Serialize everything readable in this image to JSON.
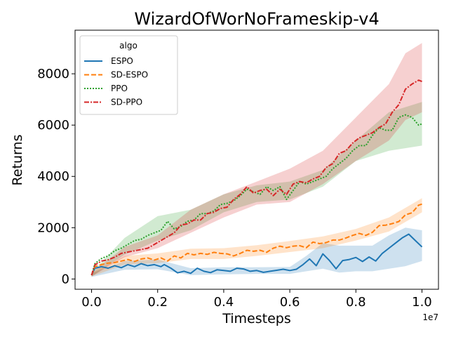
{
  "chart_data": {
    "type": "line",
    "title": "WizardOfWorNoFrameskip-v4",
    "xlabel": "Timesteps",
    "ylabel": "Returns",
    "x_scale_label": "1e7",
    "xlim": [
      -0.05,
      1.05
    ],
    "ylim": [
      -400,
      9700
    ],
    "xticks": [
      0.0,
      0.2,
      0.4,
      0.6,
      0.8,
      1.0
    ],
    "xtick_labels": [
      "0.0",
      "0.2",
      "0.4",
      "0.6",
      "0.8",
      "1.0"
    ],
    "yticks": [
      0,
      2000,
      4000,
      6000,
      8000
    ],
    "ytick_labels": [
      "0",
      "2000",
      "4000",
      "6000",
      "8000"
    ],
    "grid": false,
    "legend": {
      "title": "algo",
      "placement": "top-left",
      "entries": [
        "ESPO",
        "SD-ESPO",
        "PPO",
        "SD-PPO"
      ]
    },
    "series": [
      {
        "name": "ESPO",
        "color": "#1f77b4",
        "dash": "solid",
        "points": [
          [
            0.0,
            150
          ],
          [
            0.01,
            420
          ],
          [
            0.03,
            480
          ],
          [
            0.05,
            420
          ],
          [
            0.07,
            520
          ],
          [
            0.09,
            440
          ],
          [
            0.11,
            560
          ],
          [
            0.13,
            480
          ],
          [
            0.15,
            600
          ],
          [
            0.17,
            520
          ],
          [
            0.19,
            560
          ],
          [
            0.21,
            480
          ],
          [
            0.22,
            560
          ],
          [
            0.24,
            420
          ],
          [
            0.26,
            240
          ],
          [
            0.28,
            300
          ],
          [
            0.3,
            220
          ],
          [
            0.32,
            420
          ],
          [
            0.34,
            300
          ],
          [
            0.36,
            250
          ],
          [
            0.38,
            360
          ],
          [
            0.4,
            330
          ],
          [
            0.42,
            300
          ],
          [
            0.44,
            420
          ],
          [
            0.46,
            390
          ],
          [
            0.48,
            300
          ],
          [
            0.5,
            330
          ],
          [
            0.52,
            260
          ],
          [
            0.54,
            300
          ],
          [
            0.56,
            340
          ],
          [
            0.58,
            380
          ],
          [
            0.6,
            330
          ],
          [
            0.62,
            380
          ],
          [
            0.64,
            560
          ],
          [
            0.66,
            780
          ],
          [
            0.68,
            520
          ],
          [
            0.7,
            980
          ],
          [
            0.72,
            720
          ],
          [
            0.74,
            400
          ],
          [
            0.76,
            720
          ],
          [
            0.78,
            760
          ],
          [
            0.8,
            840
          ],
          [
            0.82,
            680
          ],
          [
            0.84,
            860
          ],
          [
            0.86,
            700
          ],
          [
            0.88,
            1000
          ],
          [
            0.9,
            1200
          ],
          [
            0.92,
            1400
          ],
          [
            0.94,
            1600
          ],
          [
            0.96,
            1750
          ],
          [
            0.98,
            1500
          ],
          [
            1.0,
            1250
          ]
        ],
        "band": [
          [
            0.0,
            80,
            220
          ],
          [
            0.1,
            360,
            700
          ],
          [
            0.2,
            380,
            760
          ],
          [
            0.3,
            150,
            420
          ],
          [
            0.4,
            180,
            460
          ],
          [
            0.5,
            200,
            460
          ],
          [
            0.6,
            200,
            470
          ],
          [
            0.65,
            300,
            900
          ],
          [
            0.7,
            400,
            1400
          ],
          [
            0.75,
            250,
            1300
          ],
          [
            0.8,
            300,
            1300
          ],
          [
            0.85,
            300,
            1300
          ],
          [
            0.9,
            400,
            1700
          ],
          [
            0.95,
            500,
            2000
          ],
          [
            1.0,
            700,
            1900
          ]
        ]
      },
      {
        "name": "SD-ESPO",
        "color": "#ff7f0e",
        "dash": "dashed",
        "points": [
          [
            0.0,
            150
          ],
          [
            0.01,
            480
          ],
          [
            0.03,
            560
          ],
          [
            0.05,
            620
          ],
          [
            0.07,
            640
          ],
          [
            0.09,
            700
          ],
          [
            0.11,
            760
          ],
          [
            0.13,
            680
          ],
          [
            0.15,
            780
          ],
          [
            0.17,
            820
          ],
          [
            0.19,
            740
          ],
          [
            0.21,
            820
          ],
          [
            0.23,
            700
          ],
          [
            0.25,
            900
          ],
          [
            0.27,
            820
          ],
          [
            0.29,
            1000
          ],
          [
            0.31,
            940
          ],
          [
            0.33,
            1000
          ],
          [
            0.35,
            960
          ],
          [
            0.37,
            1040
          ],
          [
            0.39,
            1000
          ],
          [
            0.41,
            980
          ],
          [
            0.43,
            900
          ],
          [
            0.45,
            1000
          ],
          [
            0.47,
            1120
          ],
          [
            0.49,
            1080
          ],
          [
            0.51,
            1120
          ],
          [
            0.53,
            1040
          ],
          [
            0.55,
            1200
          ],
          [
            0.57,
            1280
          ],
          [
            0.59,
            1220
          ],
          [
            0.61,
            1280
          ],
          [
            0.63,
            1300
          ],
          [
            0.65,
            1220
          ],
          [
            0.67,
            1440
          ],
          [
            0.69,
            1380
          ],
          [
            0.71,
            1420
          ],
          [
            0.73,
            1520
          ],
          [
            0.75,
            1520
          ],
          [
            0.77,
            1600
          ],
          [
            0.79,
            1700
          ],
          [
            0.81,
            1780
          ],
          [
            0.83,
            1700
          ],
          [
            0.85,
            1820
          ],
          [
            0.87,
            2080
          ],
          [
            0.89,
            2100
          ],
          [
            0.91,
            2160
          ],
          [
            0.93,
            2240
          ],
          [
            0.95,
            2500
          ],
          [
            0.97,
            2580
          ],
          [
            0.99,
            2880
          ],
          [
            1.0,
            2920
          ]
        ],
        "band": [
          [
            0.0,
            100,
            220
          ],
          [
            0.1,
            560,
            900
          ],
          [
            0.2,
            620,
            1000
          ],
          [
            0.3,
            780,
            1180
          ],
          [
            0.4,
            780,
            1200
          ],
          [
            0.5,
            900,
            1320
          ],
          [
            0.6,
            1050,
            1480
          ],
          [
            0.7,
            1200,
            1660
          ],
          [
            0.8,
            1500,
            1950
          ],
          [
            0.9,
            1850,
            2400
          ],
          [
            1.0,
            2600,
            3150
          ]
        ]
      },
      {
        "name": "PPO",
        "color": "#2ca02c",
        "dash": "dotted",
        "points": [
          [
            0.0,
            150
          ],
          [
            0.01,
            600
          ],
          [
            0.03,
            800
          ],
          [
            0.05,
            900
          ],
          [
            0.07,
            1100
          ],
          [
            0.09,
            1200
          ],
          [
            0.11,
            1350
          ],
          [
            0.13,
            1500
          ],
          [
            0.15,
            1550
          ],
          [
            0.17,
            1700
          ],
          [
            0.19,
            1800
          ],
          [
            0.21,
            1900
          ],
          [
            0.23,
            2250
          ],
          [
            0.25,
            1950
          ],
          [
            0.27,
            2050
          ],
          [
            0.29,
            2250
          ],
          [
            0.31,
            2300
          ],
          [
            0.33,
            2550
          ],
          [
            0.35,
            2550
          ],
          [
            0.37,
            2650
          ],
          [
            0.39,
            2900
          ],
          [
            0.41,
            2950
          ],
          [
            0.43,
            3050
          ],
          [
            0.45,
            3250
          ],
          [
            0.47,
            3500
          ],
          [
            0.49,
            3400
          ],
          [
            0.51,
            3300
          ],
          [
            0.53,
            3600
          ],
          [
            0.55,
            3450
          ],
          [
            0.57,
            3600
          ],
          [
            0.59,
            3100
          ],
          [
            0.61,
            3450
          ],
          [
            0.63,
            3800
          ],
          [
            0.65,
            3700
          ],
          [
            0.67,
            3800
          ],
          [
            0.69,
            3900
          ],
          [
            0.71,
            4000
          ],
          [
            0.73,
            4300
          ],
          [
            0.75,
            4500
          ],
          [
            0.77,
            4700
          ],
          [
            0.79,
            5000
          ],
          [
            0.81,
            5200
          ],
          [
            0.83,
            5200
          ],
          [
            0.85,
            5600
          ],
          [
            0.87,
            5900
          ],
          [
            0.89,
            5800
          ],
          [
            0.91,
            5800
          ],
          [
            0.93,
            6300
          ],
          [
            0.95,
            6400
          ],
          [
            0.97,
            6300
          ],
          [
            0.99,
            6000
          ],
          [
            1.0,
            6050
          ]
        ],
        "band": [
          [
            0.0,
            100,
            250
          ],
          [
            0.1,
            950,
            1600
          ],
          [
            0.2,
            1500,
            2450
          ],
          [
            0.3,
            1900,
            2700
          ],
          [
            0.4,
            2600,
            3300
          ],
          [
            0.5,
            3000,
            3650
          ],
          [
            0.6,
            3100,
            3800
          ],
          [
            0.7,
            3600,
            4250
          ],
          [
            0.8,
            4600,
            5400
          ],
          [
            0.9,
            5000,
            6500
          ],
          [
            1.0,
            5200,
            6900
          ]
        ]
      },
      {
        "name": "SD-PPO",
        "color": "#d62728",
        "dash": "dashdot",
        "points": [
          [
            0.0,
            150
          ],
          [
            0.01,
            550
          ],
          [
            0.03,
            700
          ],
          [
            0.05,
            750
          ],
          [
            0.07,
            850
          ],
          [
            0.09,
            1000
          ],
          [
            0.11,
            1050
          ],
          [
            0.13,
            1100
          ],
          [
            0.15,
            1150
          ],
          [
            0.17,
            1200
          ],
          [
            0.19,
            1350
          ],
          [
            0.21,
            1500
          ],
          [
            0.23,
            1650
          ],
          [
            0.25,
            1800
          ],
          [
            0.27,
            2100
          ],
          [
            0.29,
            2150
          ],
          [
            0.31,
            2300
          ],
          [
            0.33,
            2300
          ],
          [
            0.35,
            2550
          ],
          [
            0.37,
            2600
          ],
          [
            0.39,
            2750
          ],
          [
            0.41,
            2800
          ],
          [
            0.43,
            3100
          ],
          [
            0.45,
            3300
          ],
          [
            0.47,
            3600
          ],
          [
            0.49,
            3350
          ],
          [
            0.51,
            3450
          ],
          [
            0.53,
            3500
          ],
          [
            0.55,
            3250
          ],
          [
            0.57,
            3500
          ],
          [
            0.59,
            3300
          ],
          [
            0.61,
            3700
          ],
          [
            0.63,
            3800
          ],
          [
            0.65,
            3750
          ],
          [
            0.67,
            3900
          ],
          [
            0.69,
            4000
          ],
          [
            0.71,
            4350
          ],
          [
            0.73,
            4500
          ],
          [
            0.75,
            4900
          ],
          [
            0.77,
            5000
          ],
          [
            0.79,
            5300
          ],
          [
            0.81,
            5500
          ],
          [
            0.83,
            5600
          ],
          [
            0.85,
            5700
          ],
          [
            0.87,
            5900
          ],
          [
            0.89,
            6050
          ],
          [
            0.91,
            6500
          ],
          [
            0.93,
            6800
          ],
          [
            0.95,
            7400
          ],
          [
            0.97,
            7600
          ],
          [
            0.99,
            7750
          ],
          [
            1.0,
            7700
          ]
        ],
        "band": [
          [
            0.0,
            100,
            250
          ],
          [
            0.1,
            850,
            1250
          ],
          [
            0.2,
            1200,
            1700
          ],
          [
            0.3,
            1800,
            2700
          ],
          [
            0.4,
            2400,
            3300
          ],
          [
            0.5,
            2900,
            3800
          ],
          [
            0.6,
            3000,
            4300
          ],
          [
            0.7,
            3700,
            5000
          ],
          [
            0.8,
            4600,
            6300
          ],
          [
            0.9,
            5400,
            7600
          ],
          [
            0.95,
            6200,
            8800
          ],
          [
            1.0,
            6500,
            9200
          ]
        ]
      }
    ]
  }
}
